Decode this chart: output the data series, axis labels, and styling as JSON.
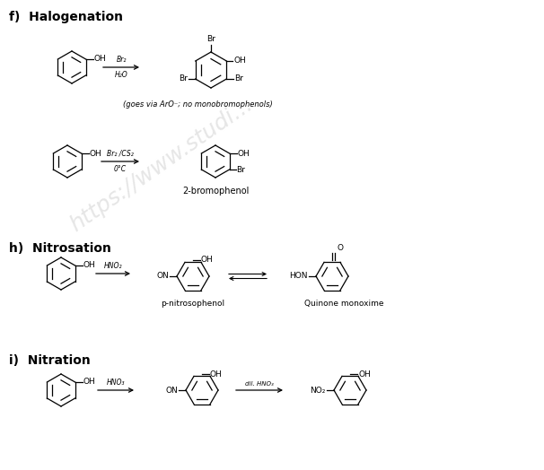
{
  "bg_color": "#ffffff",
  "text_color": "#000000",
  "section_f_title": "f)  Halogenation",
  "section_h_title": "h)  Nitrosation",
  "section_i_title": "i)  Nitration"
}
